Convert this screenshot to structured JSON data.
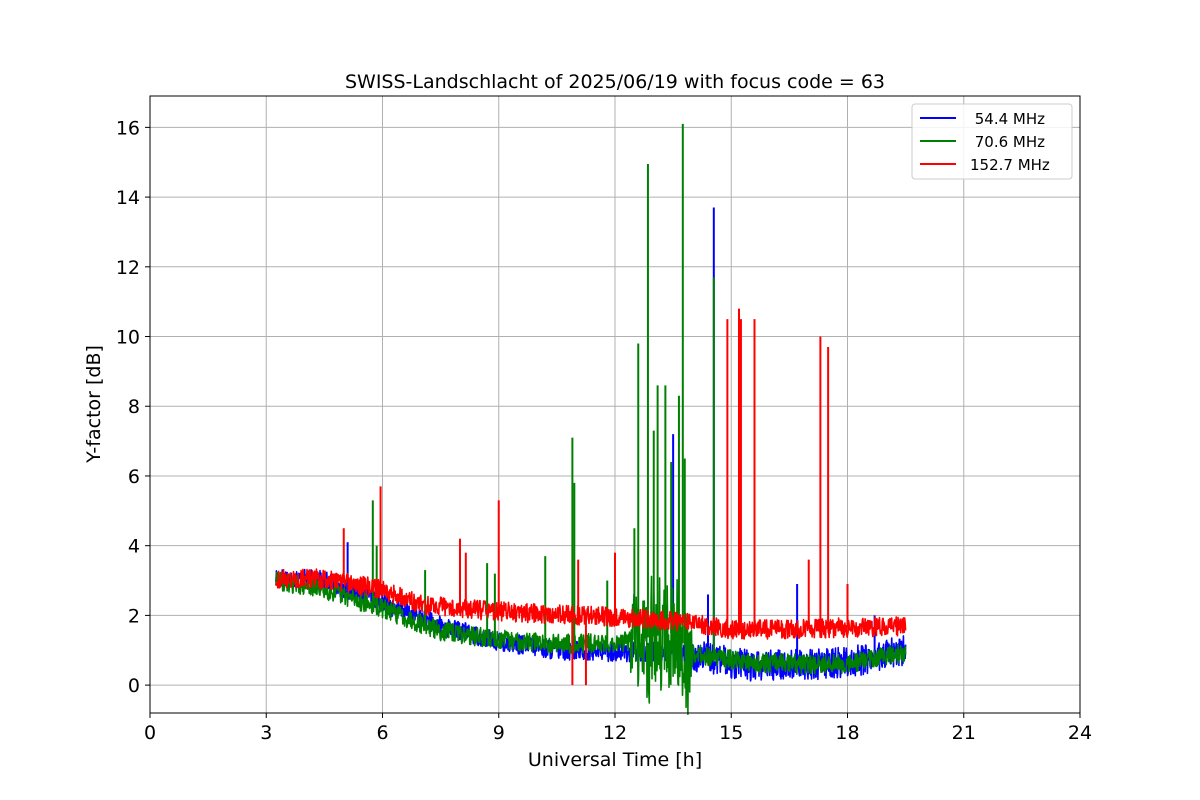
{
  "chart_data": {
    "type": "line",
    "title": "SWISS-Landschlacht of 2025/06/19 with focus code = 63",
    "xlabel": "Universal Time [h]",
    "ylabel": "Y-factor [dB]",
    "xlim": [
      0,
      24
    ],
    "ylim": [
      -0.8,
      16.9
    ],
    "xticks": [
      0,
      3,
      6,
      9,
      12,
      15,
      18,
      21,
      24
    ],
    "xtick_labels": [
      "0",
      "3",
      "6",
      "9",
      "12",
      "15",
      "18",
      "21",
      "24"
    ],
    "yticks": [
      0,
      2,
      4,
      6,
      8,
      10,
      12,
      14,
      16
    ],
    "ytick_labels": [
      "0",
      "2",
      "4",
      "6",
      "8",
      "10",
      "12",
      "14",
      "16"
    ],
    "grid": true,
    "legend_position": "top-right",
    "series": [
      {
        "name": " 54.4 MHz",
        "color": "#0000ff",
        "baseline": [
          [
            3.25,
            3.1
          ],
          [
            4.5,
            3.0
          ],
          [
            6.0,
            2.35
          ],
          [
            7.5,
            1.7
          ],
          [
            9.0,
            1.25
          ],
          [
            10.5,
            1.0
          ],
          [
            12.0,
            0.95
          ],
          [
            13.5,
            0.95
          ],
          [
            14.0,
            0.85
          ],
          [
            15.5,
            0.55
          ],
          [
            17.0,
            0.6
          ],
          [
            18.0,
            0.65
          ],
          [
            19.5,
            1.0
          ]
        ],
        "spikes": [
          [
            5.1,
            4.1
          ],
          [
            13.5,
            7.2
          ],
          [
            14.4,
            2.6
          ],
          [
            14.55,
            13.7
          ],
          [
            16.7,
            2.9
          ],
          [
            18.7,
            2.0
          ]
        ]
      },
      {
        "name": " 70.6 MHz",
        "color": "#008000",
        "baseline": [
          [
            3.25,
            3.0
          ],
          [
            4.5,
            2.75
          ],
          [
            6.0,
            2.2
          ],
          [
            7.5,
            1.55
          ],
          [
            9.0,
            1.3
          ],
          [
            10.5,
            1.2
          ],
          [
            12.0,
            1.2
          ],
          [
            12.5,
            1.3
          ],
          [
            13.5,
            1.5
          ],
          [
            14.0,
            0.9
          ],
          [
            15.5,
            0.65
          ],
          [
            17.0,
            0.6
          ],
          [
            18.0,
            0.6
          ],
          [
            19.5,
            0.95
          ]
        ],
        "spikes": [
          [
            5.75,
            5.3
          ],
          [
            5.85,
            4.0
          ],
          [
            7.1,
            3.3
          ],
          [
            8.7,
            3.5
          ],
          [
            8.9,
            3.2
          ],
          [
            10.2,
            3.7
          ],
          [
            10.9,
            7.1
          ],
          [
            10.95,
            5.8
          ],
          [
            11.8,
            3.0
          ],
          [
            12.5,
            4.5
          ],
          [
            12.6,
            9.8
          ],
          [
            12.85,
            14.95
          ],
          [
            13.0,
            7.3
          ],
          [
            13.1,
            8.6
          ],
          [
            13.3,
            8.6
          ],
          [
            13.45,
            6.4
          ],
          [
            13.65,
            8.3
          ],
          [
            13.75,
            16.1
          ],
          [
            13.8,
            6.5
          ],
          [
            14.55,
            11.7
          ]
        ]
      },
      {
        "name": "152.7 MHz",
        "color": "#ff0000",
        "baseline": [
          [
            3.25,
            3.05
          ],
          [
            4.5,
            3.05
          ],
          [
            6.0,
            2.75
          ],
          [
            7.0,
            2.3
          ],
          [
            8.5,
            2.15
          ],
          [
            10.0,
            2.05
          ],
          [
            12.0,
            1.95
          ],
          [
            13.5,
            1.85
          ],
          [
            15.0,
            1.6
          ],
          [
            16.5,
            1.6
          ],
          [
            18.0,
            1.65
          ],
          [
            19.5,
            1.7
          ]
        ],
        "spikes": [
          [
            5.0,
            4.5
          ],
          [
            5.95,
            5.7
          ],
          [
            8.0,
            4.2
          ],
          [
            8.15,
            3.8
          ],
          [
            9.0,
            5.3
          ],
          [
            11.05,
            3.6
          ],
          [
            12.0,
            3.8
          ],
          [
            14.9,
            10.5
          ],
          [
            15.2,
            10.8
          ],
          [
            15.25,
            10.5
          ],
          [
            15.6,
            10.5
          ],
          [
            17.0,
            3.6
          ],
          [
            17.3,
            10.0
          ],
          [
            17.5,
            9.7
          ],
          [
            18.0,
            2.9
          ]
        ],
        "dips": [
          [
            10.9,
            0.0
          ],
          [
            11.25,
            0.0
          ]
        ]
      }
    ]
  }
}
